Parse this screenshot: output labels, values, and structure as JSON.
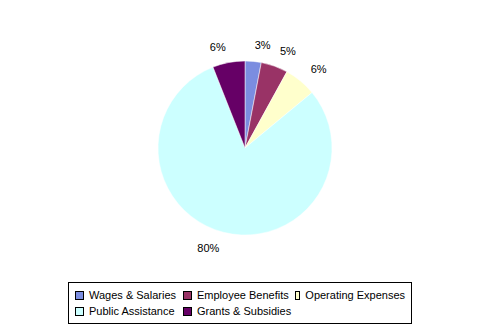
{
  "chart_data": {
    "type": "pie",
    "categories": [
      "Wages & Salaries",
      "Employee Benefits",
      "Operating Expenses",
      "Public Assistance",
      "Grants & Subsidies"
    ],
    "values": [
      3,
      5,
      6,
      80,
      6
    ],
    "value_labels": [
      "3%",
      "5%",
      "6%",
      "80%",
      "6%"
    ],
    "colors": [
      "#7b8de0",
      "#993366",
      "#ffffcc",
      "#ccffff",
      "#660066"
    ],
    "data_labels": true,
    "legend": "bottom"
  }
}
